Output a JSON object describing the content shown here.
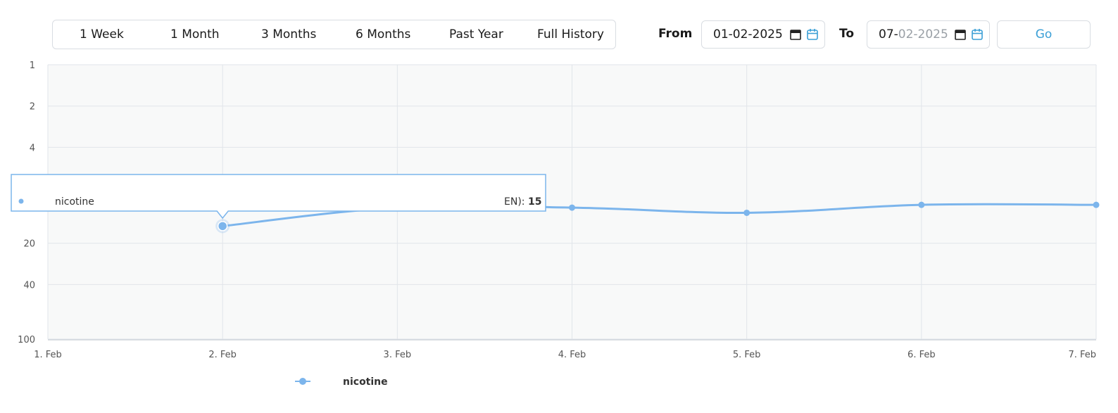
{
  "range_buttons": [
    {
      "label": "1 Week"
    },
    {
      "label": "1 Month"
    },
    {
      "label": "3 Months"
    },
    {
      "label": "6 Months"
    },
    {
      "label": "Past Year"
    },
    {
      "label": "Full History"
    }
  ],
  "date_range": {
    "from_label": "From",
    "from_value": "01-02-2025",
    "to_label": "To",
    "to_value_day": "07-",
    "to_value_rest": "02-2025"
  },
  "go_label": "Go",
  "colors": {
    "series": "#7cb5ec",
    "accent": "#3b9fd6",
    "plot_bg": "#f8f9f9",
    "grid": "#e1e5ea"
  },
  "chart_data": {
    "type": "line",
    "y_scale": "log",
    "y_reversed": true,
    "y_ticks": [
      1,
      2,
      4,
      20,
      40,
      100
    ],
    "y_tick_labels": [
      "1",
      "2",
      "4",
      "20",
      "40",
      "100"
    ],
    "ylim": [
      1,
      100
    ],
    "x_tick_labels": [
      "1. Feb",
      "2. Feb",
      "3. Feb",
      "4. Feb",
      "5. Feb",
      "6. Feb",
      "7. Feb"
    ],
    "grid": true,
    "legend_position": "bottom",
    "series": [
      {
        "name": "nicotine",
        "x": [
          "2. Feb",
          "3. Feb",
          "4. Feb",
          "5. Feb",
          "6. Feb",
          "7. Feb"
        ],
        "values": [
          15,
          11,
          11,
          12,
          10.5,
          10.5
        ]
      }
    ],
    "tooltip": {
      "series_label": "nicotine",
      "value_prefix": "EN):",
      "value": "15",
      "x": "2. Feb"
    }
  }
}
